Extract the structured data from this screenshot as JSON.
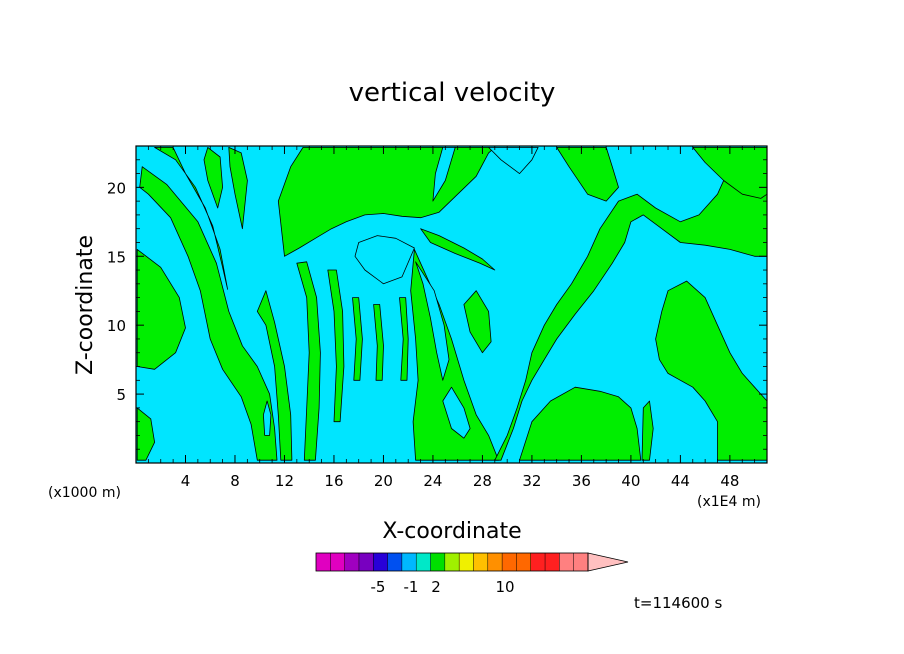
{
  "chart_data": {
    "type": "heatmap",
    "title": "vertical velocity",
    "xlabel": "X-coordinate",
    "ylabel": "Z-coordinate",
    "x_unit_left": "(x1000 m)",
    "x_unit_right": "(x1E4 m)",
    "xlim": [
      0,
      51
    ],
    "ylim": [
      0,
      23
    ],
    "x_ticks": [
      "4",
      "8",
      "12",
      "16",
      "20",
      "24",
      "28",
      "32",
      "36",
      "40",
      "44",
      "48"
    ],
    "x_tick_values": [
      4,
      8,
      12,
      16,
      20,
      24,
      28,
      32,
      36,
      40,
      44,
      48
    ],
    "y_ticks": [
      "5",
      "10",
      "15",
      "20"
    ],
    "y_tick_values": [
      5,
      10,
      15,
      20
    ],
    "time_label": "t=114600 s",
    "colors": {
      "negative": "#00e5ff",
      "positive": "#00ee00"
    },
    "colorbar": {
      "labels": [
        "-5",
        "-1",
        "2",
        "10"
      ],
      "colors": [
        "#e000c0",
        "#e000c0",
        "#a000c0",
        "#7800c0",
        "#2800d8",
        "#0050f0",
        "#00b8ff",
        "#00e8c8",
        "#00e000",
        "#a0f000",
        "#f0f000",
        "#ffc000",
        "#ff9000",
        "#ff6800",
        "#ff6800",
        "#ff2020",
        "#ff2020",
        "#ff8080",
        "#ff8080",
        "#ffc0c0"
      ],
      "label_positions": [
        3,
        5,
        6,
        9
      ]
    },
    "positive_regions": [
      [
        [
          0.1,
          15.5
        ],
        [
          2.0,
          14.2
        ],
        [
          3.5,
          12.0
        ],
        [
          4.0,
          9.8
        ],
        [
          3.2,
          8.0
        ],
        [
          1.5,
          6.8
        ],
        [
          0.1,
          7.0
        ]
      ],
      [
        [
          0.1,
          4.0
        ],
        [
          1.2,
          3.2
        ],
        [
          1.5,
          1.5
        ],
        [
          0.8,
          0.2
        ],
        [
          0.1,
          0.2
        ]
      ],
      [
        [
          0.5,
          21.5
        ],
        [
          2.5,
          20.2
        ],
        [
          5.0,
          17.5
        ],
        [
          6.5,
          14.5
        ],
        [
          7.5,
          11.0
        ],
        [
          8.6,
          8.5
        ],
        [
          9.8,
          7.0
        ],
        [
          10.8,
          5.0
        ],
        [
          11.2,
          2.5
        ],
        [
          11.4,
          0.2
        ],
        [
          9.8,
          0.2
        ],
        [
          9.3,
          2.8
        ],
        [
          8.5,
          4.8
        ],
        [
          7.0,
          6.8
        ],
        [
          6.0,
          9.0
        ],
        [
          5.2,
          12.5
        ],
        [
          4.2,
          15.0
        ],
        [
          2.8,
          17.8
        ],
        [
          1.0,
          19.5
        ],
        [
          0.3,
          20.0
        ]
      ],
      [
        [
          1.5,
          22.9
        ],
        [
          3.2,
          22.0
        ],
        [
          4.8,
          20.0
        ],
        [
          6.2,
          17.2
        ],
        [
          7.0,
          14.2
        ],
        [
          7.4,
          12.6
        ],
        [
          6.8,
          15.5
        ],
        [
          5.6,
          18.5
        ],
        [
          4.0,
          21.0
        ],
        [
          3.0,
          22.9
        ]
      ],
      [
        [
          5.8,
          22.9
        ],
        [
          6.8,
          22.2
        ],
        [
          7.0,
          20.0
        ],
        [
          6.6,
          18.5
        ],
        [
          5.8,
          20.5
        ],
        [
          5.5,
          22.0
        ]
      ],
      [
        [
          7.5,
          22.9
        ],
        [
          8.5,
          22.5
        ],
        [
          9.0,
          20.5
        ],
        [
          8.6,
          17.0
        ],
        [
          8.0,
          19.5
        ],
        [
          7.6,
          21.5
        ]
      ],
      [
        [
          12.0,
          15.0
        ],
        [
          13.2,
          15.6
        ],
        [
          14.5,
          16.3
        ],
        [
          15.8,
          17.0
        ],
        [
          17.0,
          17.5
        ],
        [
          18.5,
          18.0
        ],
        [
          20.0,
          18.1
        ],
        [
          21.5,
          17.9
        ],
        [
          23.0,
          17.8
        ],
        [
          24.5,
          18.2
        ],
        [
          26.0,
          19.5
        ],
        [
          27.5,
          20.8
        ],
        [
          28.5,
          22.5
        ],
        [
          29.0,
          22.9
        ],
        [
          13.5,
          22.9
        ],
        [
          12.5,
          21.5
        ],
        [
          11.5,
          19.0
        ]
      ],
      [
        [
          9.8,
          11.0
        ],
        [
          10.5,
          10.0
        ],
        [
          11.2,
          7.0
        ],
        [
          11.5,
          3.5
        ],
        [
          11.7,
          0.2
        ],
        [
          12.6,
          0.2
        ],
        [
          12.5,
          3.5
        ],
        [
          12.0,
          7.0
        ],
        [
          11.2,
          10.2
        ],
        [
          10.5,
          12.5
        ]
      ],
      [
        [
          13.0,
          14.5
        ],
        [
          13.8,
          12.0
        ],
        [
          14.0,
          8.0
        ],
        [
          13.8,
          4.0
        ],
        [
          13.6,
          0.2
        ],
        [
          14.5,
          0.2
        ],
        [
          14.8,
          4.0
        ],
        [
          14.9,
          8.0
        ],
        [
          14.6,
          12.0
        ],
        [
          13.8,
          14.6
        ]
      ],
      [
        [
          15.5,
          14.0
        ],
        [
          16.0,
          11.0
        ],
        [
          16.2,
          7.0
        ],
        [
          16.0,
          3.0
        ],
        [
          16.5,
          3.0
        ],
        [
          16.8,
          7.0
        ],
        [
          16.7,
          11.0
        ],
        [
          16.2,
          14.0
        ]
      ],
      [
        [
          17.5,
          12.0
        ],
        [
          17.8,
          9.0
        ],
        [
          17.6,
          6.0
        ],
        [
          18.1,
          6.0
        ],
        [
          18.3,
          9.0
        ],
        [
          18.0,
          12.0
        ]
      ],
      [
        [
          19.2,
          11.5
        ],
        [
          19.5,
          8.5
        ],
        [
          19.4,
          6.0
        ],
        [
          19.9,
          6.0
        ],
        [
          20.0,
          8.5
        ],
        [
          19.7,
          11.5
        ]
      ],
      [
        [
          21.3,
          12.0
        ],
        [
          21.6,
          9.0
        ],
        [
          21.4,
          6.0
        ],
        [
          21.9,
          6.0
        ],
        [
          22.0,
          9.0
        ],
        [
          21.8,
          12.0
        ]
      ],
      [
        [
          22.5,
          15.5
        ],
        [
          23.5,
          13.5
        ],
        [
          24.5,
          11.5
        ],
        [
          25.5,
          9.0
        ],
        [
          26.5,
          6.0
        ],
        [
          27.5,
          3.5
        ],
        [
          28.5,
          2.0
        ],
        [
          29.3,
          0.2
        ],
        [
          22.6,
          0.2
        ],
        [
          22.4,
          3.0
        ],
        [
          22.8,
          6.0
        ],
        [
          22.6,
          9.0
        ],
        [
          22.2,
          12.5
        ]
      ],
      [
        [
          23.0,
          17.0
        ],
        [
          24.5,
          16.5
        ],
        [
          26.5,
          15.6
        ],
        [
          28.0,
          14.8
        ],
        [
          29.0,
          14.0
        ],
        [
          27.8,
          14.5
        ],
        [
          25.8,
          15.2
        ],
        [
          23.8,
          16.0
        ]
      ],
      [
        [
          26.5,
          11.5
        ],
        [
          27.5,
          12.5
        ],
        [
          28.5,
          11.0
        ],
        [
          28.7,
          8.8
        ],
        [
          28.0,
          8.0
        ],
        [
          27.0,
          9.5
        ]
      ],
      [
        [
          29.5,
          0.2
        ],
        [
          30.5,
          2.5
        ],
        [
          31.2,
          4.5
        ],
        [
          32.0,
          6.0
        ],
        [
          33.0,
          7.5
        ],
        [
          34.0,
          9.0
        ],
        [
          35.5,
          10.8
        ],
        [
          37.0,
          12.5
        ],
        [
          38.5,
          14.5
        ],
        [
          39.5,
          16.0
        ],
        [
          40.0,
          17.5
        ],
        [
          41.0,
          18.0
        ],
        [
          42.5,
          17.0
        ],
        [
          44.0,
          16.0
        ],
        [
          46.0,
          15.8
        ],
        [
          48.0,
          15.5
        ],
        [
          50.0,
          15.0
        ],
        [
          51,
          15.0
        ],
        [
          51,
          22.9
        ],
        [
          49.0,
          22.9
        ],
        [
          48.0,
          21.5
        ],
        [
          47.0,
          19.5
        ],
        [
          45.5,
          18.0
        ],
        [
          44.0,
          17.5
        ],
        [
          42.0,
          18.5
        ],
        [
          40.5,
          19.5
        ],
        [
          39.0,
          19.0
        ],
        [
          37.5,
          17.0
        ],
        [
          36.5,
          15.0
        ],
        [
          35.2,
          13.0
        ],
        [
          34.0,
          11.5
        ],
        [
          33.0,
          10.0
        ],
        [
          32.0,
          8.0
        ],
        [
          31.5,
          6.0
        ],
        [
          30.8,
          4.0
        ],
        [
          30.0,
          2.0
        ],
        [
          29.0,
          0.2
        ]
      ],
      [
        [
          31.0,
          0.2
        ],
        [
          32.0,
          3.0
        ],
        [
          33.5,
          4.5
        ],
        [
          35.5,
          5.5
        ],
        [
          37.5,
          5.2
        ],
        [
          39.0,
          4.8
        ],
        [
          40.0,
          4.0
        ],
        [
          40.5,
          2.5
        ],
        [
          40.8,
          0.2
        ]
      ],
      [
        [
          41.0,
          4.0
        ],
        [
          41.5,
          4.5
        ],
        [
          41.8,
          2.5
        ],
        [
          41.5,
          0.2
        ],
        [
          40.9,
          0.2
        ]
      ],
      [
        [
          42.0,
          9.0
        ],
        [
          42.5,
          11.0
        ],
        [
          43.0,
          12.5
        ],
        [
          44.5,
          13.2
        ],
        [
          46.0,
          12.0
        ],
        [
          47.0,
          10.0
        ],
        [
          48.0,
          8.0
        ],
        [
          49.0,
          6.5
        ],
        [
          50.0,
          5.5
        ],
        [
          51,
          4.5
        ],
        [
          51,
          0.2
        ],
        [
          47.0,
          0.2
        ],
        [
          47.0,
          3.0
        ],
        [
          46.0,
          4.5
        ],
        [
          45.0,
          5.5
        ],
        [
          44.0,
          6.0
        ],
        [
          43.0,
          6.5
        ],
        [
          42.3,
          7.5
        ]
      ],
      [
        [
          34.0,
          22.9
        ],
        [
          35.0,
          21.5
        ],
        [
          36.5,
          19.5
        ],
        [
          38.0,
          19.0
        ],
        [
          39.0,
          20.0
        ],
        [
          38.5,
          21.5
        ],
        [
          38.0,
          22.9
        ]
      ],
      [
        [
          45.0,
          22.9
        ],
        [
          46.0,
          21.8
        ],
        [
          47.5,
          20.5
        ],
        [
          49.0,
          19.5
        ],
        [
          50.5,
          19.2
        ],
        [
          51,
          19.5
        ],
        [
          51,
          22.9
        ]
      ]
    ],
    "negative_regions": [
      [
        [
          18.0,
          16.0
        ],
        [
          19.5,
          16.5
        ],
        [
          21.0,
          16.3
        ],
        [
          22.5,
          15.6
        ],
        [
          21.5,
          13.5
        ],
        [
          20.0,
          13.0
        ],
        [
          18.5,
          14.0
        ],
        [
          17.7,
          15.0
        ]
      ],
      [
        [
          24.0,
          19.0
        ],
        [
          25.0,
          20.5
        ],
        [
          25.5,
          22.0
        ],
        [
          25.8,
          22.9
        ],
        [
          24.8,
          22.9
        ],
        [
          24.2,
          21.0
        ]
      ],
      [
        [
          22.6,
          14.6
        ],
        [
          23.2,
          13.0
        ],
        [
          23.8,
          10.5
        ],
        [
          24.3,
          8.0
        ],
        [
          24.8,
          6.0
        ],
        [
          25.3,
          7.5
        ],
        [
          24.9,
          10.0
        ],
        [
          24.1,
          12.5
        ]
      ],
      [
        [
          24.8,
          4.5
        ],
        [
          25.5,
          5.5
        ],
        [
          26.5,
          4.0
        ],
        [
          27.0,
          2.5
        ],
        [
          26.5,
          1.8
        ],
        [
          25.5,
          2.5
        ]
      ],
      [
        [
          10.3,
          3.5
        ],
        [
          10.6,
          4.5
        ],
        [
          10.9,
          3.5
        ],
        [
          10.8,
          2.0
        ],
        [
          10.4,
          2.0
        ]
      ],
      [
        [
          28.5,
          22.9
        ],
        [
          29.5,
          22.0
        ],
        [
          31.0,
          21.0
        ],
        [
          32.0,
          22.0
        ],
        [
          32.5,
          22.9
        ]
      ]
    ]
  }
}
